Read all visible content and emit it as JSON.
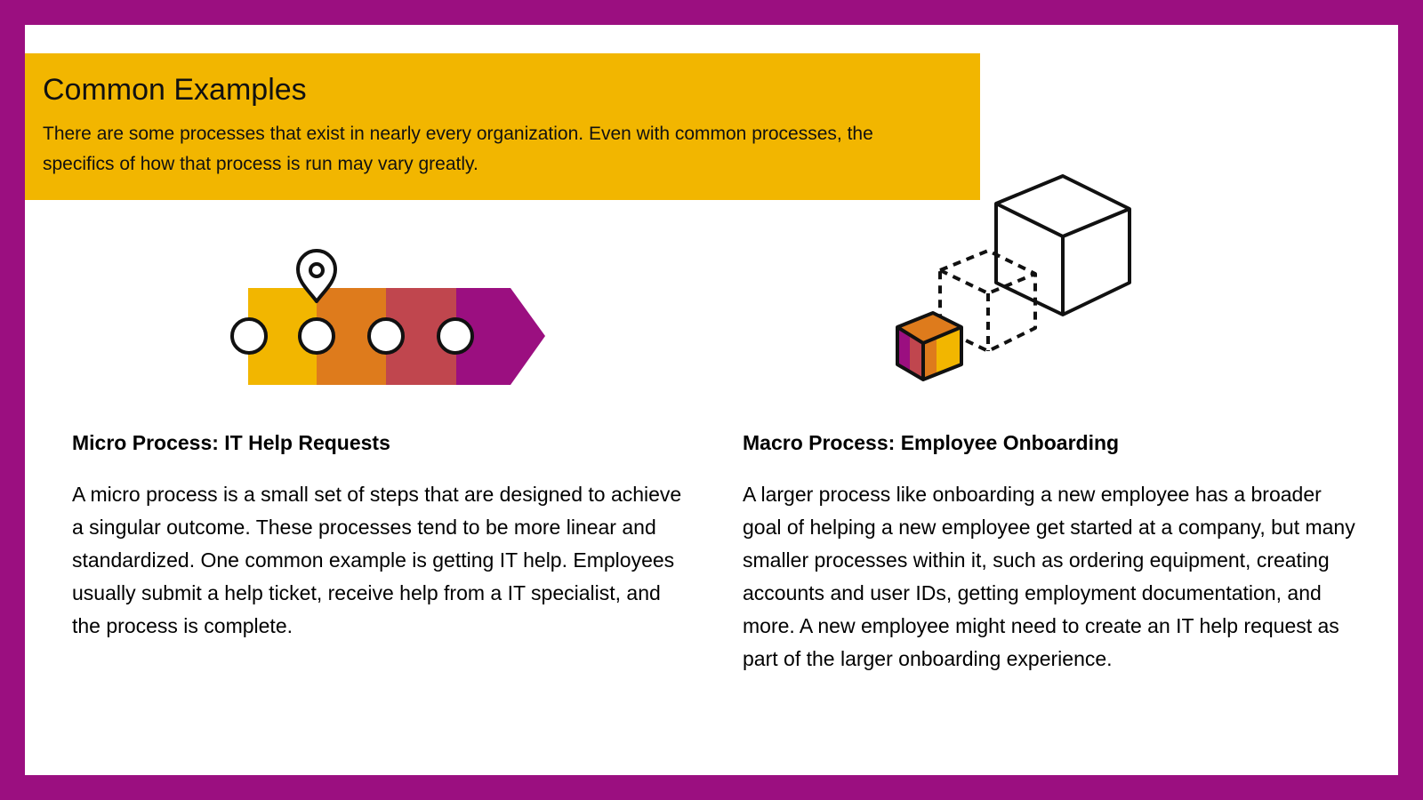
{
  "slide": {
    "background_color": "#9b0f80",
    "accent_color": "#f2b600"
  },
  "banner": {
    "title": "Common Examples",
    "subtitle": "There are some processes that exist in nearly every organization. Even with common processes, the specifics of how that process is run may vary greatly."
  },
  "illustrations": {
    "micro": {
      "icon": "progress-arrow-with-location-pin-icon",
      "colors": [
        "#f2b600",
        "#de7b1c",
        "#c0464e",
        "#9b0f80"
      ]
    },
    "macro": {
      "icon": "scaling-cubes-icon"
    }
  },
  "micro": {
    "heading": "Micro Process: IT Help Requests",
    "body": "A micro process is a small set of steps that are designed to achieve a singular outcome. These processes tend to be more linear and standardized. One common example is getting IT help. Employees usually submit a help ticket, receive help from a IT specialist, and the process is complete."
  },
  "macro": {
    "heading": "Macro Process: Employee Onboarding",
    "body": "A larger process like onboarding a new employee has a broader goal of helping a new employee get started at a company, but many smaller processes within it, such as ordering equipment, creating accounts and user IDs, getting employment documentation, and more. A new employee might need to create an IT help request as part of the larger onboarding experience."
  }
}
